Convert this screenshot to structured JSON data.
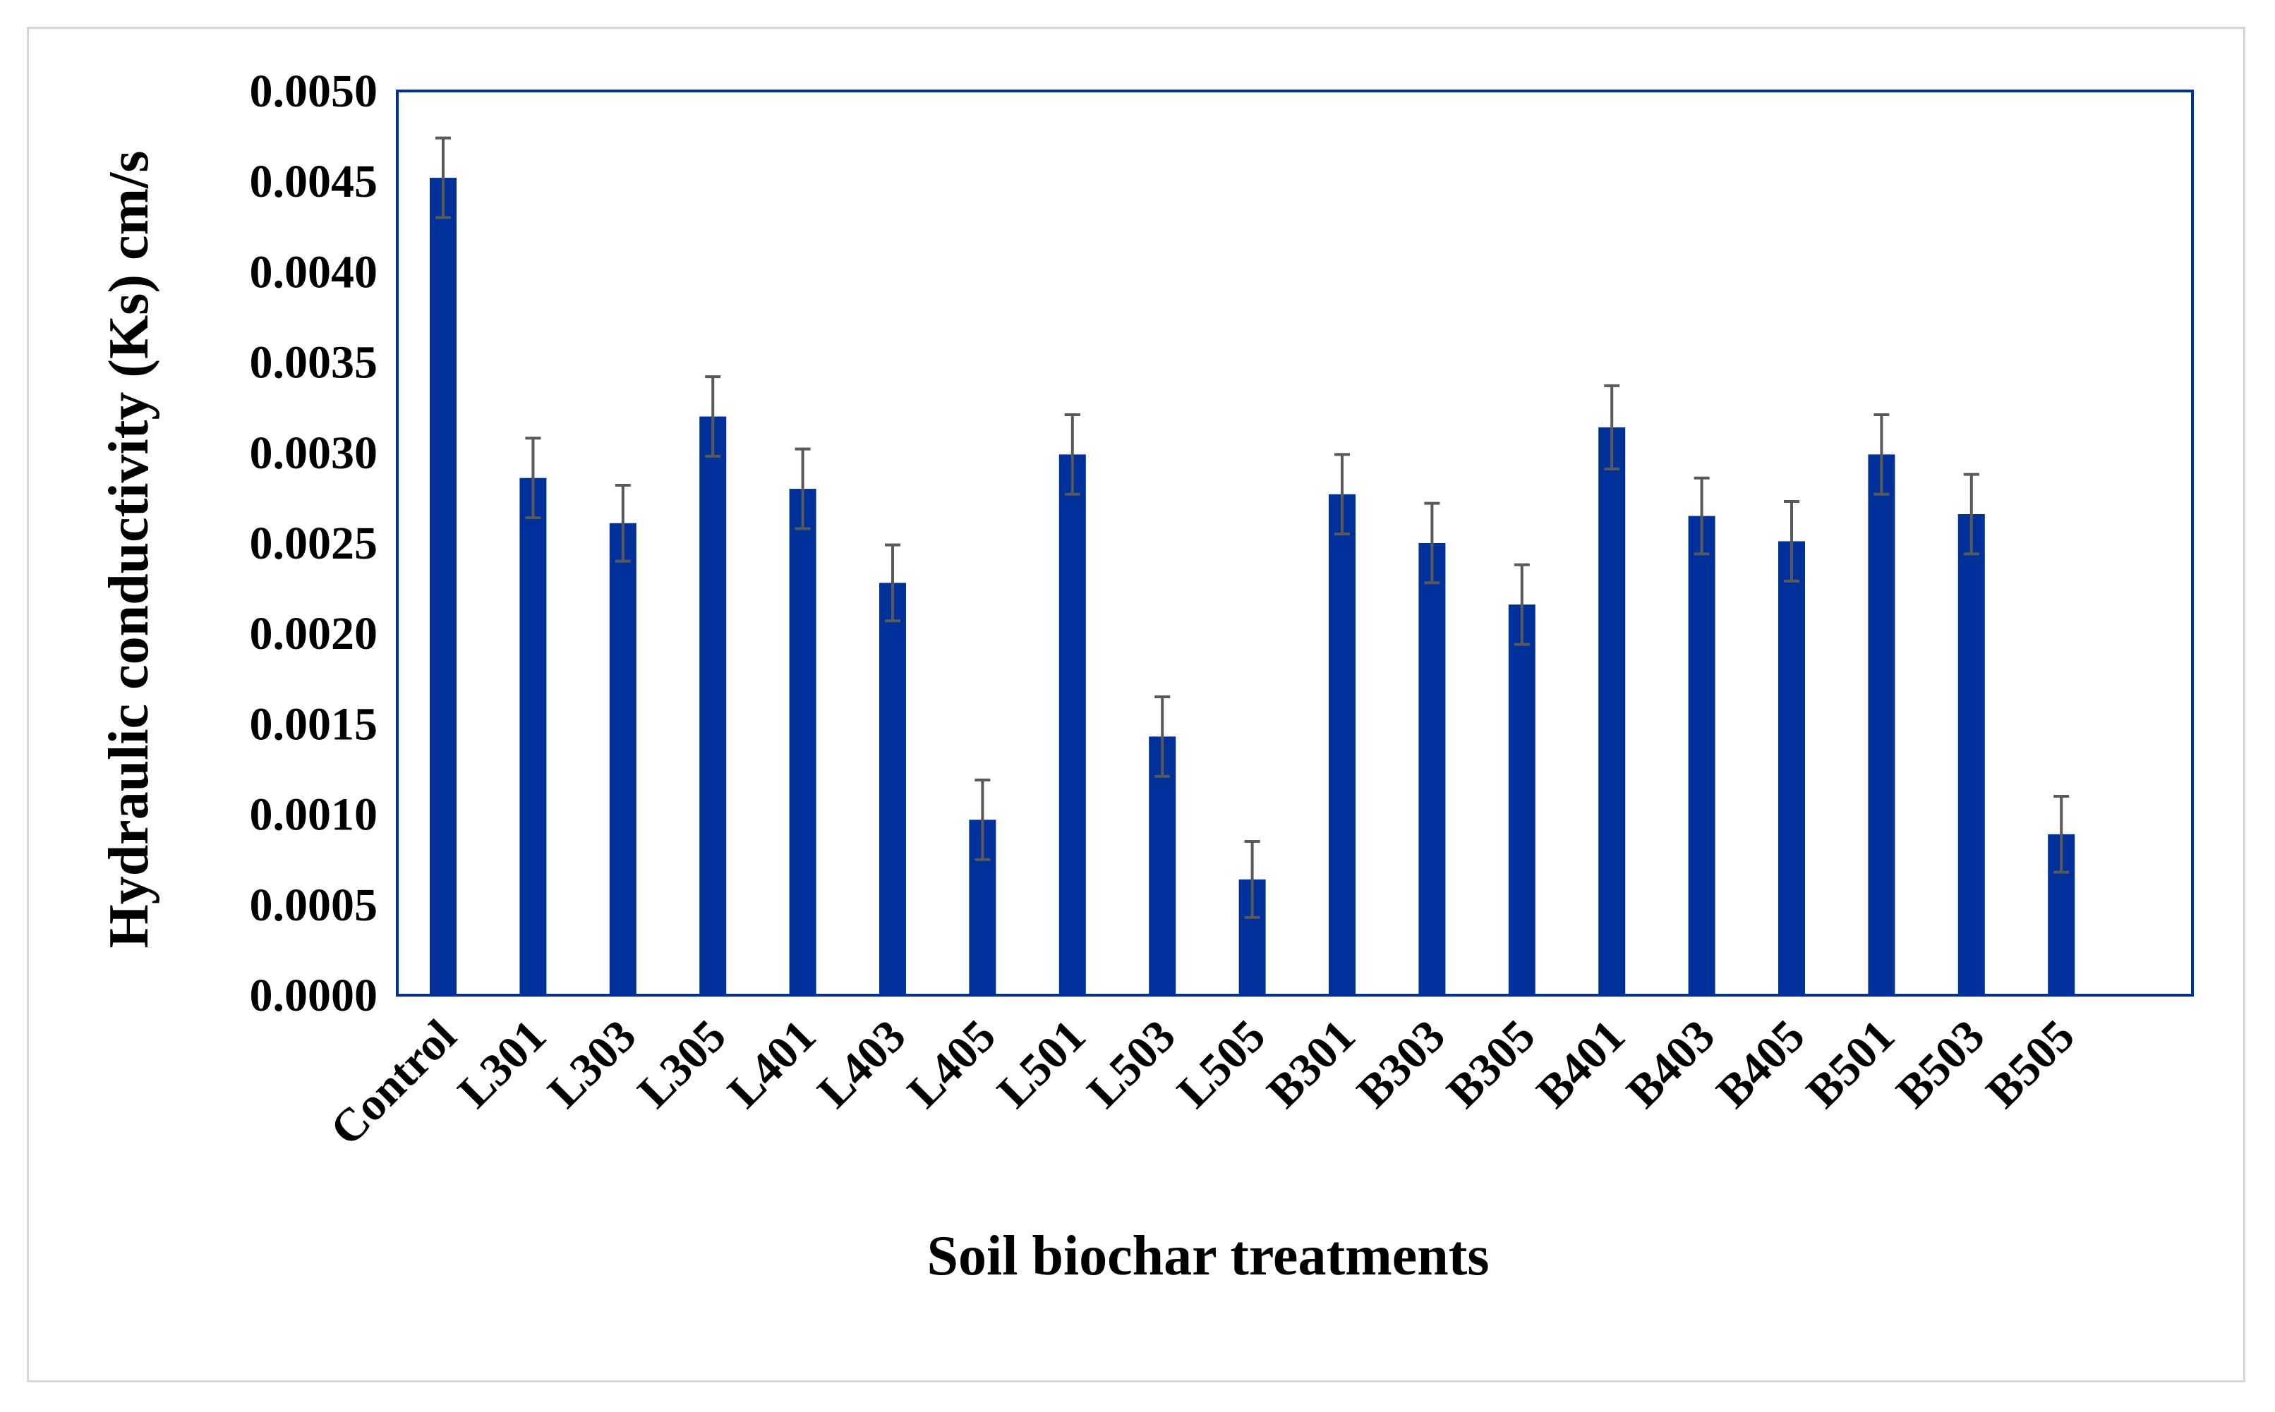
{
  "chart_data": {
    "type": "bar",
    "xlabel": "Soil biochar treatments",
    "ylabel": "Hydraulic  conductivity  (Ks) cm/s",
    "ylim": [
      0,
      0.005
    ],
    "yticks": [
      "0.0000",
      "0.0005",
      "0.0010",
      "0.0015",
      "0.0020",
      "0.0025",
      "0.0030",
      "0.0035",
      "0.0040",
      "0.0045",
      "0.0050"
    ],
    "categories": [
      "Control",
      "L301",
      "L303",
      "L305",
      "L401",
      "L403",
      "L405",
      "L501",
      "L503",
      "L505",
      "B301",
      "B303",
      "B305",
      "B401",
      "B403",
      "B405",
      "B501",
      "B503",
      "B505"
    ],
    "values": [
      0.00452,
      0.00286,
      0.00261,
      0.0032,
      0.0028,
      0.00228,
      0.00097,
      0.00299,
      0.00143,
      0.00064,
      0.00277,
      0.0025,
      0.00216,
      0.00314,
      0.00265,
      0.00251,
      0.00299,
      0.00266,
      0.00089
    ],
    "errors": [
      0.00022,
      0.00022,
      0.00021,
      0.00022,
      0.00022,
      0.00021,
      0.00022,
      0.00022,
      0.00022,
      0.00021,
      0.00022,
      0.00022,
      0.00022,
      0.00023,
      0.00021,
      0.00022,
      0.00022,
      0.00022,
      0.00021
    ],
    "grid": false,
    "legend": "none",
    "colors": {
      "bar": "#00319b",
      "error_bar": "#595959",
      "plot_border": "#00319b",
      "axis": "#00319b",
      "frame_border": "#d6d6d6"
    }
  }
}
